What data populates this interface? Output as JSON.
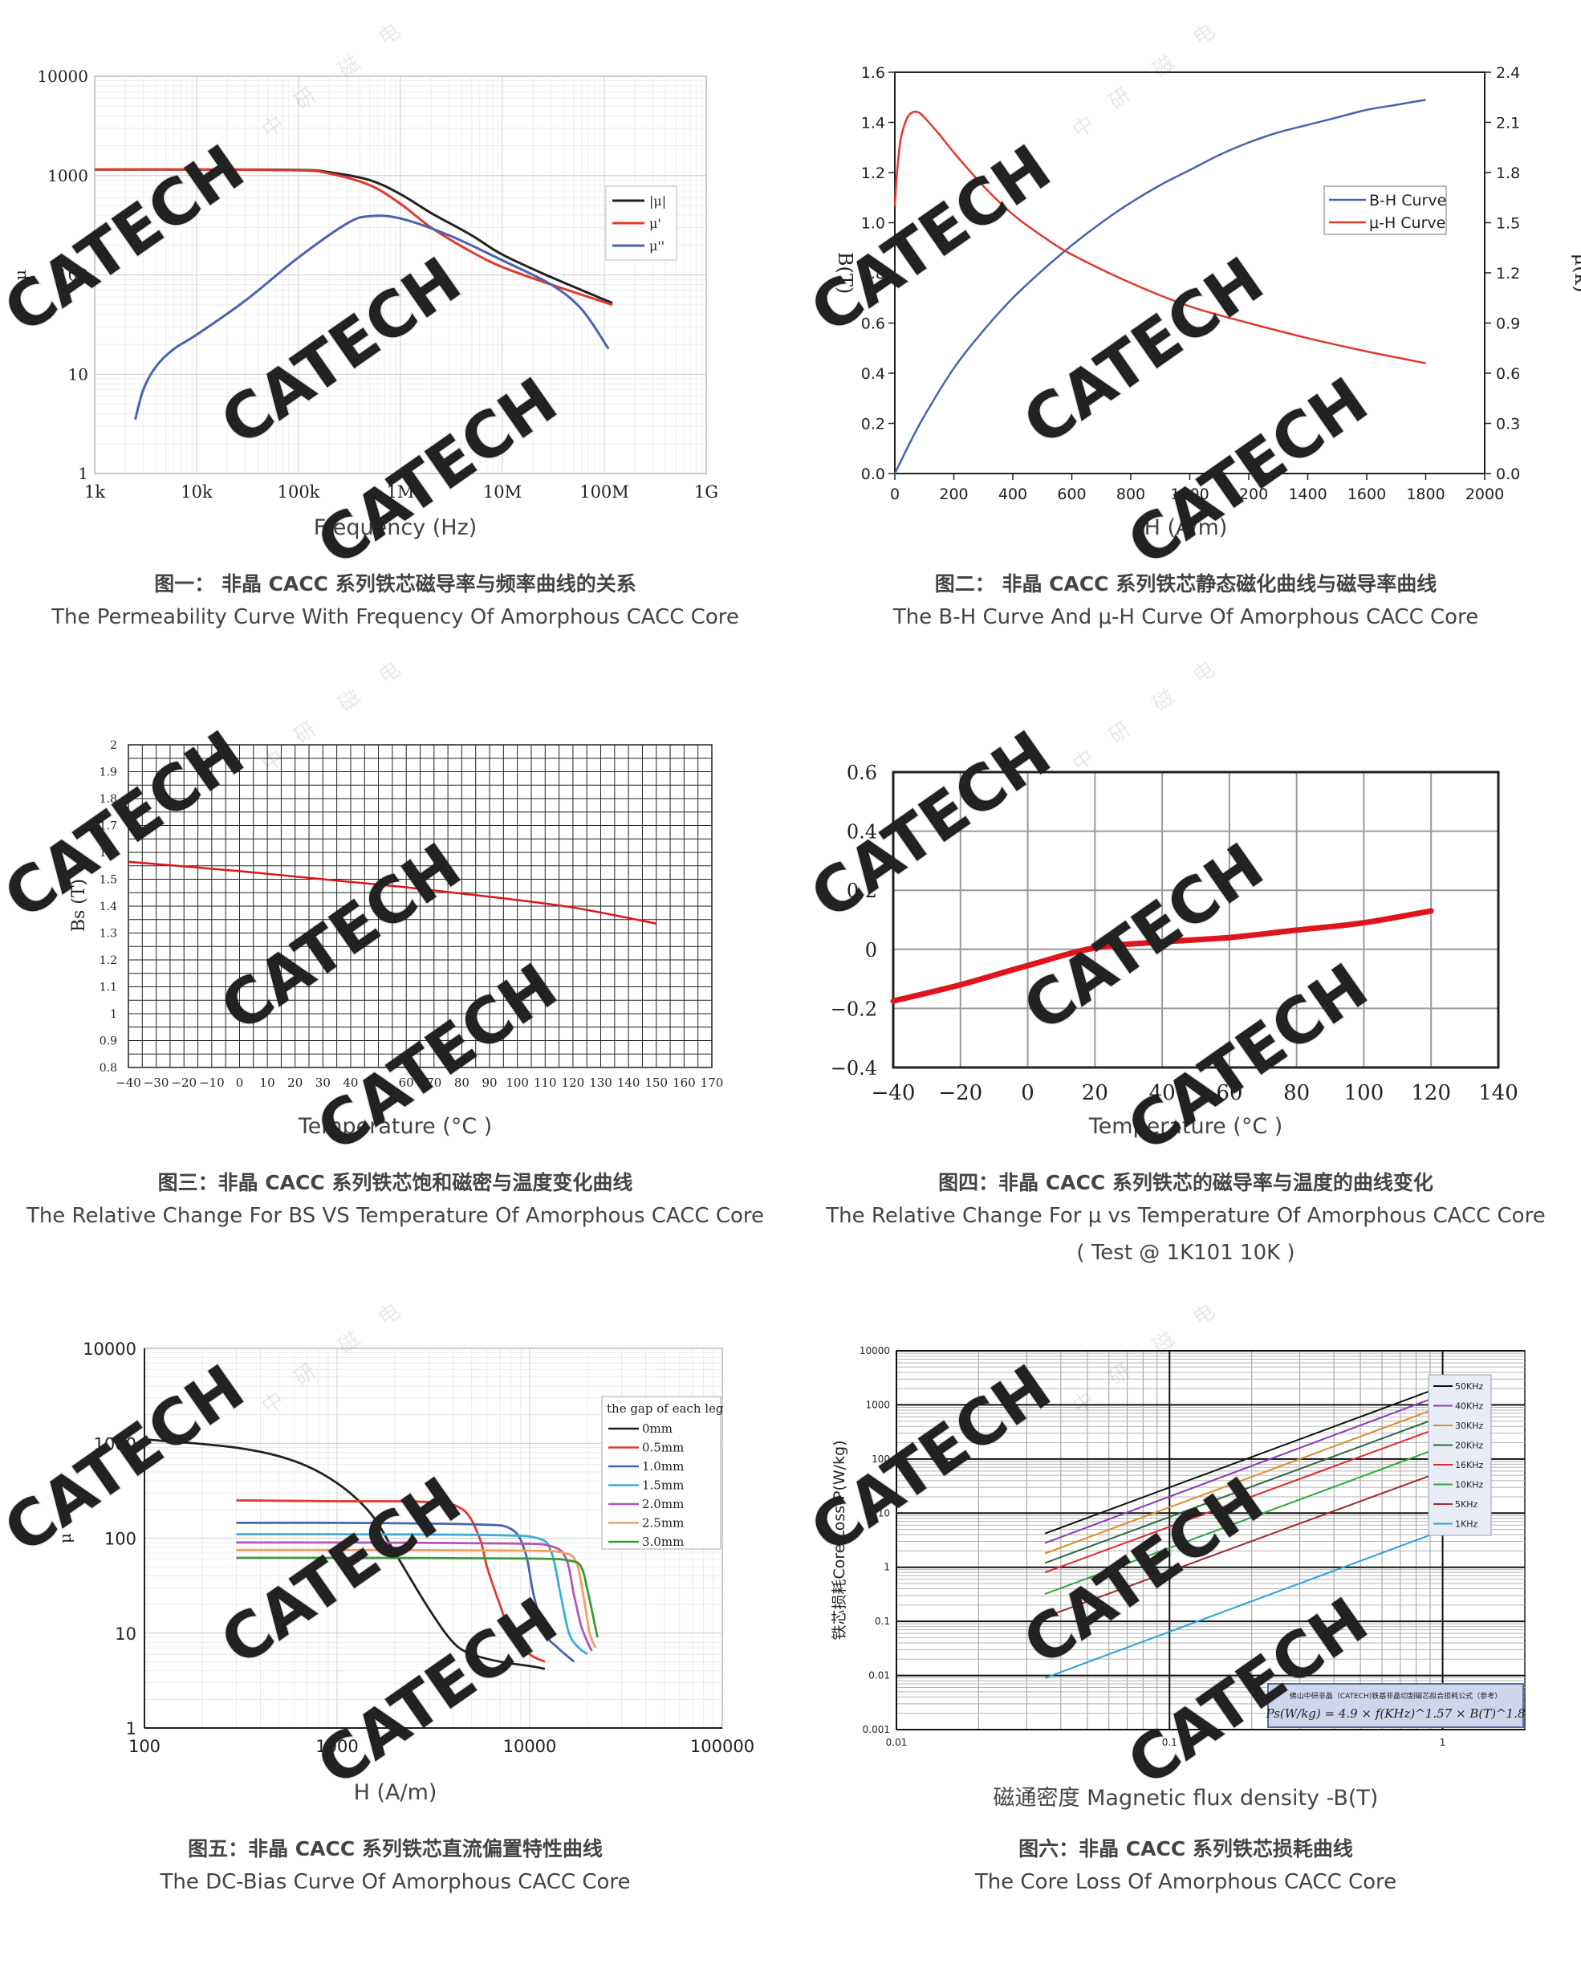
{
  "watermark": {
    "brand": "CATECH",
    "chars": [
      "中",
      "研",
      "磁",
      "电"
    ]
  },
  "panels": [
    {
      "id": "p1",
      "x_label": "Frequency (Hz)",
      "caption_zh": "图一： 非晶 CACC 系列铁芯磁导率与频率曲线的关系",
      "caption_en": "The Permeability Curve With Frequency Of Amorphous CACC Core",
      "chart_data": {
        "type": "line",
        "xscale": "log",
        "yscale": "log",
        "xlim": [
          1000,
          1000000000
        ],
        "ylim": [
          1,
          10000
        ],
        "xticks": [
          1000,
          10000,
          100000,
          1000000,
          10000000,
          100000000,
          1000000000
        ],
        "xticklabels": [
          "1k",
          "10k",
          "100k",
          "1M",
          "10M",
          "100M",
          "1G"
        ],
        "yticks": [
          1,
          10,
          100,
          1000,
          10000
        ],
        "yticklabels": [
          "1",
          "10",
          "100",
          "1000",
          "10000"
        ],
        "ylabel": "μ",
        "legend_position": "right",
        "series": [
          {
            "name": "|μ|",
            "color": "#222222",
            "x": [
              1000,
              10000,
              100000,
              200000,
              500000,
              1000000,
              2000000,
              5000000,
              10000000,
              30000000,
              120000000
            ],
            "y": [
              1150,
              1150,
              1140,
              1080,
              900,
              650,
              420,
              250,
              160,
              95,
              52
            ]
          },
          {
            "name": "μ'",
            "color": "#e03a2a",
            "x": [
              1000,
              10000,
              100000,
              200000,
              500000,
              1000000,
              2000000,
              5000000,
              10000000,
              30000000,
              120000000
            ],
            "y": [
              1150,
              1150,
              1130,
              1050,
              800,
              520,
              300,
              170,
              120,
              80,
              50
            ]
          },
          {
            "name": "μ''",
            "color": "#4a63b0",
            "x": [
              2500,
              3000,
              4000,
              6000,
              10000,
              30000,
              100000,
              300000,
              500000,
              1000000,
              3000000,
              10000000,
              30000000,
              60000000,
              110000000
            ],
            "y": [
              3.5,
              7,
              12,
              18,
              25,
              55,
              150,
              330,
              390,
              370,
              250,
              140,
              80,
              45,
              18
            ]
          }
        ]
      }
    },
    {
      "id": "p2",
      "x_label": "H (A/m)",
      "caption_zh": "图二： 非晶 CACC 系列铁芯静态磁化曲线与磁导率曲线",
      "caption_en": "The B-H Curve And μ-H Curve Of Amorphous CACC Core",
      "chart_data": {
        "type": "line",
        "xlim": [
          0,
          2000
        ],
        "ylim": [
          0,
          1.6
        ],
        "y2lim": [
          0,
          2.4
        ],
        "xticks": [
          0,
          200,
          400,
          600,
          800,
          1000,
          1200,
          1400,
          1600,
          1800,
          2000
        ],
        "yticks": [
          0.0,
          0.2,
          0.4,
          0.6,
          0.8,
          1.0,
          1.2,
          1.4,
          1.6
        ],
        "yticklabels": [
          "0.0",
          "0.2",
          "0.4",
          "0.6",
          "0.8",
          "1.0",
          "1.2",
          "1.4",
          "1.6"
        ],
        "y2ticks": [
          0.0,
          0.3,
          0.6,
          0.9,
          1.2,
          1.5,
          1.8,
          2.1,
          2.4
        ],
        "y2ticklabels": [
          "0.0",
          "0.3",
          "0.6",
          "0.9",
          "1.2",
          "1.5",
          "1.8",
          "2.1",
          "2.4"
        ],
        "ylabel": "B(T)",
        "y2label": "μ(k)",
        "legend_position": "top-right",
        "series": [
          {
            "name": "B-H Curve",
            "color": "#4a63b0",
            "axis": "left",
            "x": [
              0,
              50,
              100,
              200,
              300,
              400,
              500,
              600,
              700,
              800,
              900,
              1000,
              1100,
              1200,
              1300,
              1400,
              1500,
              1600,
              1700,
              1800
            ],
            "y": [
              0.0,
              0.12,
              0.23,
              0.42,
              0.57,
              0.7,
              0.81,
              0.91,
              1.0,
              1.08,
              1.15,
              1.21,
              1.27,
              1.32,
              1.36,
              1.39,
              1.42,
              1.45,
              1.47,
              1.49
            ]
          },
          {
            "name": "μ-H Curve",
            "color": "#e03a2a",
            "axis": "right",
            "x": [
              0,
              5,
              10,
              20,
              40,
              60,
              80,
              100,
              150,
              200,
              300,
              400,
              500,
              600,
              800,
              1000,
              1200,
              1400,
              1600,
              1800
            ],
            "y": [
              1.6,
              1.75,
              1.85,
              2.0,
              2.12,
              2.16,
              2.16,
              2.13,
              2.03,
              1.92,
              1.72,
              1.55,
              1.42,
              1.31,
              1.14,
              1.0,
              0.9,
              0.81,
              0.73,
              0.66
            ]
          }
        ]
      }
    },
    {
      "id": "p3",
      "x_label": "Temperature (°C )",
      "caption_zh": "图三：非晶 CACC 系列铁芯饱和磁密与温度变化曲线",
      "caption_en": "The Relative Change For BS VS Temperature Of Amorphous CACC Core",
      "chart_data": {
        "type": "line",
        "xlim": [
          -40,
          170
        ],
        "ylim": [
          0.8,
          2.0
        ],
        "xticks": [
          -40,
          -30,
          -20,
          -10,
          0,
          10,
          20,
          30,
          40,
          50,
          60,
          70,
          80,
          90,
          100,
          110,
          120,
          130,
          140,
          150,
          160,
          170
        ],
        "xticklabels": [
          "−40",
          "−30",
          "−20",
          "−10",
          "0",
          "10",
          "20",
          "30",
          "40",
          "50",
          "60",
          "70",
          "80",
          "90",
          "100",
          "110",
          "120",
          "130",
          "140",
          "150",
          "160",
          "170"
        ],
        "yticks": [
          0.8,
          0.9,
          1.0,
          1.1,
          1.2,
          1.3,
          1.4,
          1.5,
          1.6,
          1.7,
          1.8,
          1.9,
          2.0
        ],
        "yticklabels": [
          "0.8",
          "0.9",
          "1",
          "1.1",
          "1.2",
          "1.3",
          "1.4",
          "1.5",
          "1.6",
          "1.7",
          "1.8",
          "1.9",
          "2"
        ],
        "ylabel": "Bs (T)",
        "grid": true,
        "series": [
          {
            "color": "#e0141c",
            "x": [
              -40,
              0,
              30,
              60,
              90,
              120,
              150
            ],
            "y": [
              1.565,
              1.53,
              1.5,
              1.47,
              1.435,
              1.395,
              1.335
            ]
          }
        ]
      }
    },
    {
      "id": "p4",
      "x_label": "Temperature (°C )",
      "caption_zh": "图四：非晶 CACC 系列铁芯的磁导率与温度的曲线变化",
      "caption_en": "The Relative Change For μ vs Temperature Of Amorphous CACC Core",
      "caption_en2": "( Test @ 1K101 10K )",
      "chart_data": {
        "type": "line",
        "xlim": [
          -40,
          140
        ],
        "ylim": [
          -0.4,
          0.6
        ],
        "xticks": [
          -40,
          -20,
          0,
          20,
          40,
          60,
          80,
          100,
          120,
          140
        ],
        "xticklabels": [
          "−40",
          "−20",
          "0",
          "20",
          "40",
          "60",
          "80",
          "100",
          "120",
          "140"
        ],
        "yticks": [
          -0.4,
          -0.2,
          0,
          0.2,
          0.4,
          0.6
        ],
        "yticklabels": [
          "−0.4",
          "−0.2",
          "0",
          "0.2",
          "0.4",
          "0.6"
        ],
        "grid": true,
        "series": [
          {
            "color": "#e0141c",
            "x": [
              -40,
              -20,
              0,
              20,
              40,
              60,
              80,
              100,
              120
            ],
            "y": [
              -0.175,
              -0.12,
              -0.055,
              0.005,
              0.025,
              0.04,
              0.065,
              0.09,
              0.13
            ]
          }
        ]
      }
    },
    {
      "id": "p5",
      "x_label": "H (A/m)",
      "caption_zh": "图五：非晶 CACC 系列铁芯直流偏置特性曲线",
      "caption_en": "The DC-Bias Curve Of Amorphous CACC Core",
      "chart_data": {
        "type": "line",
        "xscale": "log",
        "yscale": "log",
        "xlim": [
          100,
          100000
        ],
        "ylim": [
          1,
          10000
        ],
        "xticks": [
          100,
          1000,
          10000,
          100000
        ],
        "xticklabels": [
          "100",
          "1000",
          "10000",
          "100000"
        ],
        "yticks": [
          1,
          10,
          100,
          1000,
          10000
        ],
        "yticklabels": [
          "1",
          "10",
          "100",
          "1000",
          "10000"
        ],
        "ylabel": "μ",
        "legend_title": "the gap of each leg",
        "legend_position": "top-right",
        "series": [
          {
            "name": "0mm",
            "color": "#222222",
            "x": [
              100,
              300,
              600,
              1000,
              1500,
              2000,
              3000,
              4000,
              5000,
              7000,
              10000,
              12000
            ],
            "y": [
              1100,
              900,
              650,
              380,
              180,
              70,
              18,
              8,
              6,
              5,
              4.5,
              4.2
            ]
          },
          {
            "name": "0.5mm",
            "color": "#e03a2a",
            "x": [
              300,
              1000,
              3000,
              4500,
              5500,
              6000,
              7000,
              8000,
              10000,
              12000
            ],
            "y": [
              250,
              245,
              240,
              200,
              100,
              50,
              20,
              10,
              6,
              5
            ]
          },
          {
            "name": "1.0mm",
            "color": "#4a63b0",
            "x": [
              300,
              1000,
              5000,
              8000,
              9500,
              10500,
              12000,
              14000,
              17000
            ],
            "y": [
              145,
              145,
              140,
              125,
              70,
              25,
              10,
              7,
              5
            ]
          },
          {
            "name": "1.5mm",
            "color": "#3aaed8",
            "x": [
              300,
              1000,
              6000,
              11000,
              13000,
              14500,
              16000,
              18000,
              20000
            ],
            "y": [
              110,
              110,
              108,
              100,
              70,
              25,
              10,
              7,
              6
            ]
          },
          {
            "name": "2.0mm",
            "color": "#b455b8",
            "x": [
              300,
              1000,
              8000,
              13000,
              15500,
              17000,
              18500,
              20000,
              21000
            ],
            "y": [
              90,
              90,
              88,
              82,
              60,
              25,
              12,
              8,
              6.5
            ]
          },
          {
            "name": "2.5mm",
            "color": "#f0a060",
            "x": [
              300,
              1000,
              9000,
              15000,
              17500,
              19000,
              20500,
              22000
            ],
            "y": [
              75,
              75,
              74,
              70,
              55,
              25,
              10,
              7
            ]
          },
          {
            "name": "3.0mm",
            "color": "#3a9a3a",
            "x": [
              300,
              1000,
              10000,
              16000,
              18500,
              20000,
              21500,
              22500
            ],
            "y": [
              62,
              62,
              61,
              58,
              50,
              28,
              14,
              9
            ]
          }
        ]
      }
    },
    {
      "id": "p6",
      "x_label": "磁通密度 Magnetic flux density -B(T)",
      "caption_zh": "图六：非晶 CACC 系列铁芯损耗曲线",
      "caption_en": "The Core Loss Of Amorphous CACC Core",
      "chart_data": {
        "type": "line",
        "xscale": "log",
        "yscale": "log",
        "xlim": [
          0.01,
          2
        ],
        "ylim": [
          0.001,
          10000
        ],
        "xticks": [
          0.01,
          0.1,
          1
        ],
        "xticklabels": [
          "0.01",
          "0.1",
          "1"
        ],
        "yticks": [
          0.001,
          0.01,
          0.1,
          1,
          10,
          100,
          1000,
          10000
        ],
        "yticklabels": [
          "0.001",
          "0.01",
          "0.1",
          "1",
          "10",
          "100",
          "1000",
          "10000"
        ],
        "ylabel": "铁芯损耗Core  Loss-P(W/kg)",
        "legend_position": "top-right",
        "formula_title": "佛山中研非晶（CATECH)铁基非晶切割磁芯拟合损耗公式（参考）",
        "formula": "Ps(W/kg) = 4.9 × f(KHz)^1.57 × B(T)^1.8",
        "series": [
          {
            "name": "50KHz",
            "color": "#111111",
            "x": [
              0.035,
              1.0
            ],
            "y": [
              4.2,
              2200
            ]
          },
          {
            "name": "40KHz",
            "color": "#8a3ab9",
            "x": [
              0.035,
              1.0
            ],
            "y": [
              2.8,
              1550
            ]
          },
          {
            "name": "30KHz",
            "color": "#e08a2a",
            "x": [
              0.035,
              1.0
            ],
            "y": [
              1.8,
              950
            ]
          },
          {
            "name": "20KHz",
            "color": "#2a6a3a",
            "x": [
              0.035,
              1.0
            ],
            "y": [
              1.2,
              620
            ]
          },
          {
            "name": "16KHz",
            "color": "#e02a2a",
            "x": [
              0.035,
              1.0
            ],
            "y": [
              0.8,
              400
            ]
          },
          {
            "name": "10KHz",
            "color": "#2aa83a",
            "x": [
              0.035,
              1.0
            ],
            "y": [
              0.32,
              170
            ]
          },
          {
            "name": "5KHz",
            "color": "#a02a2a",
            "x": [
              0.035,
              1.0
            ],
            "y": [
              0.12,
              60
            ]
          },
          {
            "name": "1KHz",
            "color": "#2aa0d8",
            "x": [
              0.035,
              1.0
            ],
            "y": [
              0.009,
              4.8
            ]
          }
        ]
      }
    }
  ]
}
